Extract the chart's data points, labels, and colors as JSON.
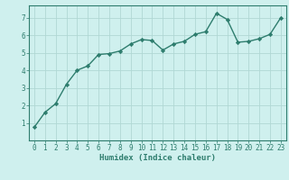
{
  "x": [
    0,
    1,
    2,
    3,
    4,
    5,
    6,
    7,
    8,
    9,
    10,
    11,
    12,
    13,
    14,
    15,
    16,
    17,
    18,
    19,
    20,
    21,
    22,
    23
  ],
  "y": [
    0.75,
    1.6,
    2.1,
    3.2,
    4.0,
    4.25,
    4.9,
    4.95,
    5.1,
    5.5,
    5.75,
    5.7,
    5.15,
    5.5,
    5.65,
    6.05,
    6.2,
    7.25,
    6.9,
    5.6,
    5.65,
    5.8,
    6.05,
    7.0
  ],
  "line_color": "#2e7d6e",
  "marker": "D",
  "marker_size": 2.2,
  "bg_color": "#cff0ee",
  "grid_color": "#b0d8d4",
  "xlabel": "Humidex (Indice chaleur)",
  "xlim": [
    -0.5,
    23.5
  ],
  "ylim": [
    0,
    7.7
  ],
  "yticks": [
    1,
    2,
    3,
    4,
    5,
    6,
    7
  ],
  "xticks": [
    0,
    1,
    2,
    3,
    4,
    5,
    6,
    7,
    8,
    9,
    10,
    11,
    12,
    13,
    14,
    15,
    16,
    17,
    18,
    19,
    20,
    21,
    22,
    23
  ],
  "tick_label_size": 5.5,
  "xlabel_size": 6.5,
  "line_width": 1.0,
  "spine_color": "#2e7d6e"
}
